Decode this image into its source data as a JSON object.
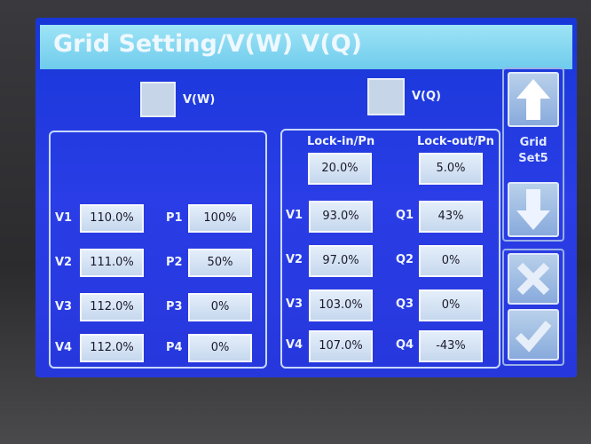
{
  "header": {
    "title": "Grid Setting/V(W) V(Q)"
  },
  "mode_options": [
    {
      "label": "V(W)"
    },
    {
      "label": "V(Q)"
    }
  ],
  "vw_panel": {
    "rows": [
      {
        "v_label": "V1",
        "v_value": "110.0%",
        "p_label": "P1",
        "p_value": "100%"
      },
      {
        "v_label": "V2",
        "v_value": "111.0%",
        "p_label": "P2",
        "p_value": "50%"
      },
      {
        "v_label": "V3",
        "v_value": "112.0%",
        "p_label": "P3",
        "p_value": "0%"
      },
      {
        "v_label": "V4",
        "v_value": "112.0%",
        "p_label": "P4",
        "p_value": "0%"
      }
    ]
  },
  "vq_panel": {
    "headers": [
      "Lock-in/Pn",
      "Lock-out/Pn"
    ],
    "lock_values": [
      "20.0%",
      "5.0%"
    ],
    "rows": [
      {
        "v_label": "V1",
        "v_value": "93.0%",
        "q_label": "Q1",
        "q_value": "43%"
      },
      {
        "v_label": "V2",
        "v_value": "97.0%",
        "q_label": "Q2",
        "q_value": "0%"
      },
      {
        "v_label": "V3",
        "v_value": "103.0%",
        "q_label": "Q3",
        "q_value": "0%"
      },
      {
        "v_label": "V4",
        "v_value": "107.0%",
        "q_label": "Q4",
        "q_value": "-43%"
      }
    ]
  },
  "side": {
    "label": "Grid Set5"
  }
}
